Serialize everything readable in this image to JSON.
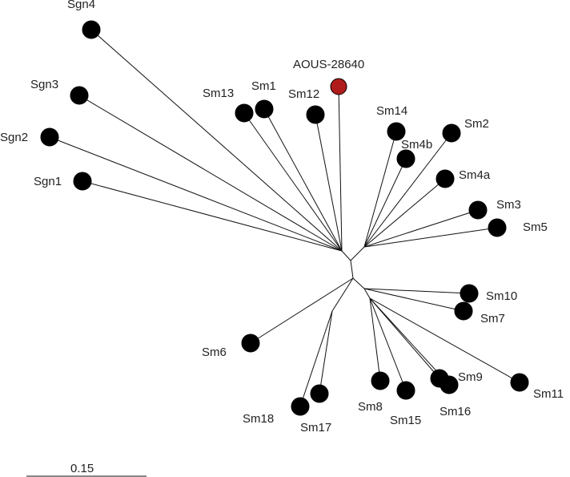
{
  "colors": {
    "branch": "#111111",
    "leaf": "#000000",
    "highlight": "#b01c1c"
  },
  "scale_bar": {
    "label": "0.15",
    "value": 0.15
  },
  "tree": {
    "highlighted_leaf": "AOUS-28640",
    "leaves": [
      {
        "id": "sgn4",
        "label": "Sgn4",
        "group": "upper-left"
      },
      {
        "id": "sgn3",
        "label": "Sgn3",
        "group": "upper-left"
      },
      {
        "id": "sgn2",
        "label": "Sgn2",
        "group": "upper-left"
      },
      {
        "id": "sgn1",
        "label": "Sgn1",
        "group": "upper-left"
      },
      {
        "id": "sm13",
        "label": "Sm13",
        "group": "upper"
      },
      {
        "id": "sm1",
        "label": "Sm1",
        "group": "upper"
      },
      {
        "id": "sm12",
        "label": "Sm12",
        "group": "upper"
      },
      {
        "id": "aous",
        "label": "AOUS-28640",
        "group": "upper",
        "highlight": true
      },
      {
        "id": "sm14",
        "label": "Sm14",
        "group": "upper-right"
      },
      {
        "id": "sm4b",
        "label": "Sm4b",
        "group": "upper-right"
      },
      {
        "id": "sm2",
        "label": "Sm2",
        "group": "upper-right"
      },
      {
        "id": "sm4a",
        "label": "Sm4a",
        "group": "upper-right"
      },
      {
        "id": "sm3",
        "label": "Sm3",
        "group": "upper-right"
      },
      {
        "id": "sm5",
        "label": "Sm5",
        "group": "upper-right"
      },
      {
        "id": "sm10",
        "label": "Sm10",
        "group": "lower-right"
      },
      {
        "id": "sm7",
        "label": "Sm7",
        "group": "lower-right"
      },
      {
        "id": "sm11",
        "label": "Sm11",
        "group": "lower-right"
      },
      {
        "id": "sm9",
        "label": "Sm9",
        "group": "lower"
      },
      {
        "id": "sm16",
        "label": "Sm16",
        "group": "lower"
      },
      {
        "id": "sm15",
        "label": "Sm15",
        "group": "lower"
      },
      {
        "id": "sm8",
        "label": "Sm8",
        "group": "lower"
      },
      {
        "id": "sm17",
        "label": "Sm17",
        "group": "lower-left"
      },
      {
        "id": "sm18",
        "label": "Sm18",
        "group": "lower-left"
      },
      {
        "id": "sm6",
        "label": "Sm6",
        "group": "lower-left"
      }
    ]
  }
}
